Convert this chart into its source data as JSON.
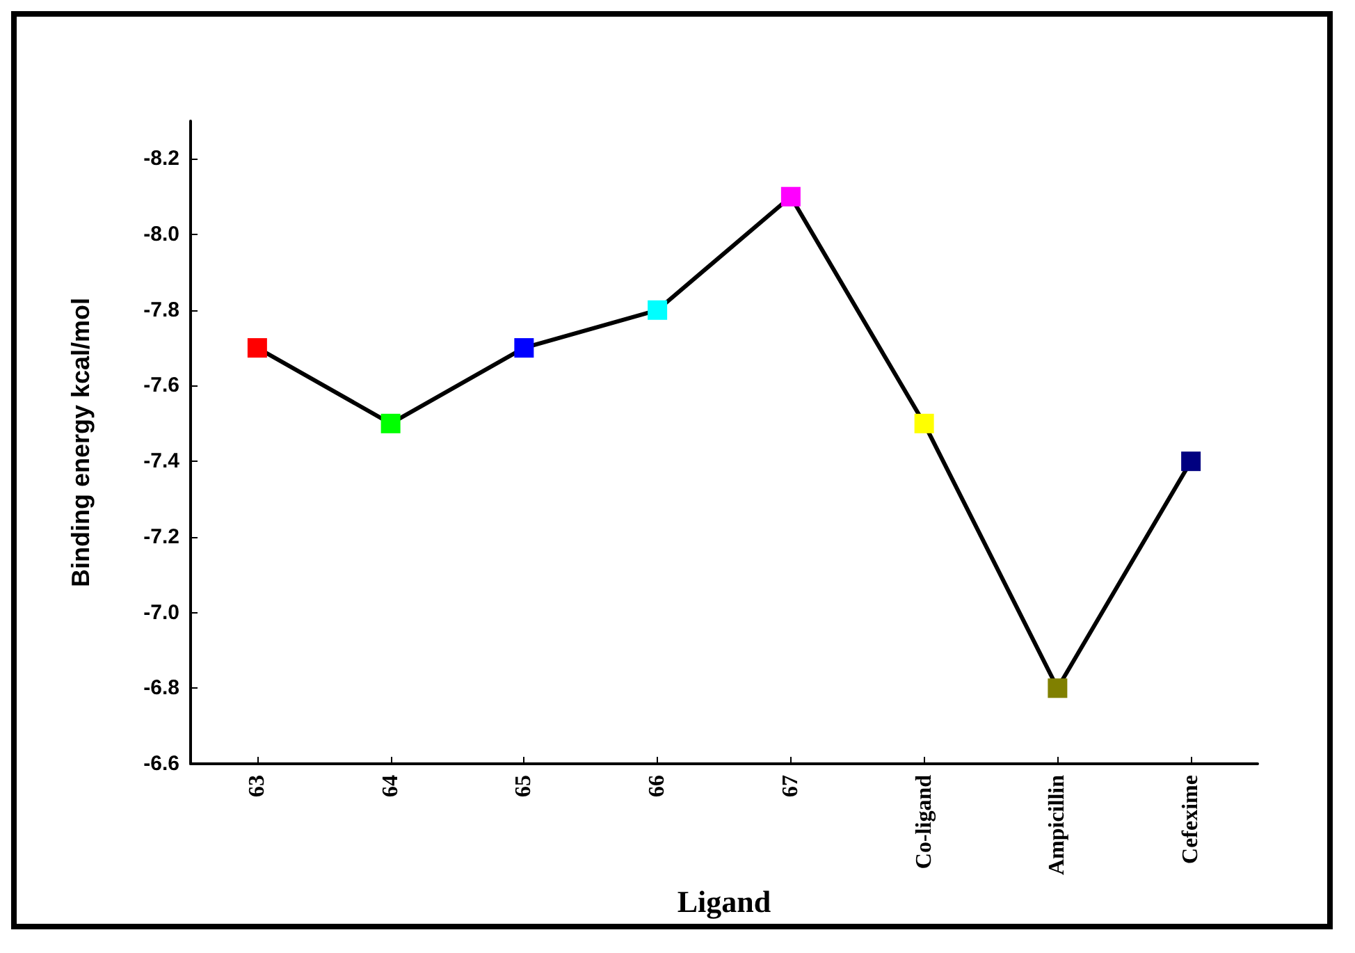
{
  "chart_data": {
    "type": "line",
    "xlabel": "Ligand",
    "ylabel": "Binding energy kcal/mol",
    "categories": [
      "63",
      "64",
      "65",
      "66",
      "67",
      "Co-ligand",
      "Ampicillin",
      "Cefexime"
    ],
    "series": [
      {
        "color": "#000000",
        "colors": [
          "#ff0000",
          "#00ff00",
          "#0000ff",
          "#00ffff",
          "#ff00ff",
          "#ffff00",
          "#808000",
          "#000080"
        ],
        "values": [
          -7.7,
          -7.5,
          -7.7,
          -7.8,
          -8.1,
          -7.5,
          -6.8,
          -7.4
        ]
      }
    ],
    "ylim": [
      -6.6,
      -8.3
    ],
    "yticks": [
      -6.6,
      -6.8,
      {
        "value": -7,
        "label": "-7.0"
      },
      -7.2,
      -7.4,
      -7.6,
      -7.8,
      {
        "value": -8,
        "label": "-8.0"
      },
      -8.2
    ],
    "marker": "square",
    "line_style": "solid"
  }
}
